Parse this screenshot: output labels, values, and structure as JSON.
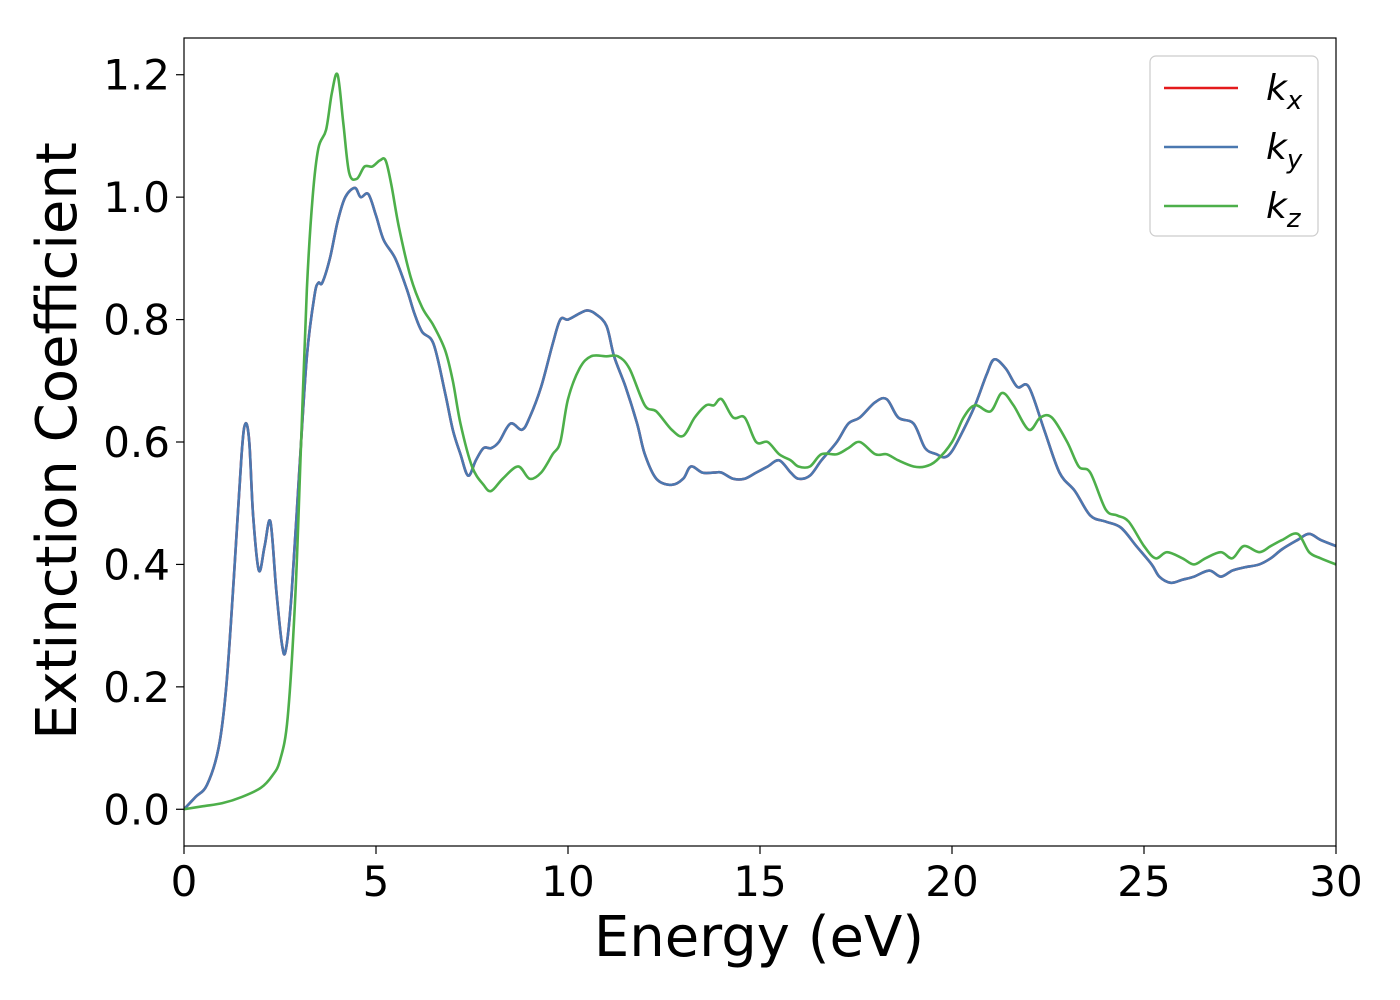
{
  "chart_data": {
    "type": "line",
    "title": "",
    "xlabel": "Energy (eV)",
    "ylabel": "Extinction Coefficient",
    "xlim": [
      0,
      30
    ],
    "ylim": [
      -0.06,
      1.26
    ],
    "xticks": [
      0,
      5,
      10,
      15,
      20,
      25,
      30
    ],
    "yticks": [
      0.0,
      0.2,
      0.4,
      0.6,
      0.8,
      1.0,
      1.2
    ],
    "grid": false,
    "legend_position": "top-right",
    "series": [
      {
        "name": "k",
        "subscript": "x",
        "color": "#e41a1c",
        "x": [
          0,
          0.3,
          0.6,
          0.9,
          1.1,
          1.3,
          1.5,
          1.6,
          1.7,
          1.8,
          1.95,
          2.1,
          2.25,
          2.4,
          2.55,
          2.65,
          2.8,
          3.0,
          3.2,
          3.4,
          3.5,
          3.6,
          3.8,
          4.0,
          4.2,
          4.45,
          4.6,
          4.8,
          5.0,
          5.2,
          5.5,
          5.8,
          6.0,
          6.2,
          6.5,
          6.8,
          7.0,
          7.2,
          7.4,
          7.6,
          7.8,
          8.0,
          8.2,
          8.5,
          8.8,
          9.0,
          9.3,
          9.6,
          9.8,
          10.0,
          10.3,
          10.5,
          10.7,
          11.0,
          11.2,
          11.5,
          11.8,
          12.0,
          12.3,
          12.7,
          13.0,
          13.2,
          13.5,
          13.8,
          14.0,
          14.3,
          14.6,
          14.9,
          15.2,
          15.5,
          15.8,
          16.0,
          16.3,
          16.6,
          17.0,
          17.3,
          17.6,
          18.0,
          18.3,
          18.6,
          19.0,
          19.3,
          19.6,
          19.8,
          20.0,
          20.3,
          20.6,
          20.9,
          21.1,
          21.4,
          21.7,
          22.0,
          22.4,
          22.8,
          23.2,
          23.6,
          24.0,
          24.4,
          24.8,
          25.2,
          25.4,
          25.7,
          26.0,
          26.3,
          26.7,
          27.0,
          27.3,
          27.6,
          28.0,
          28.3,
          28.6,
          29.0,
          29.3,
          29.6,
          30.0
        ],
        "y": [
          0.0,
          0.02,
          0.04,
          0.1,
          0.2,
          0.38,
          0.58,
          0.63,
          0.6,
          0.48,
          0.39,
          0.43,
          0.47,
          0.36,
          0.27,
          0.26,
          0.35,
          0.55,
          0.74,
          0.84,
          0.86,
          0.86,
          0.9,
          0.96,
          1.0,
          1.015,
          1.0,
          1.005,
          0.97,
          0.93,
          0.9,
          0.85,
          0.81,
          0.78,
          0.76,
          0.68,
          0.62,
          0.58,
          0.545,
          0.57,
          0.59,
          0.59,
          0.6,
          0.63,
          0.62,
          0.64,
          0.69,
          0.76,
          0.8,
          0.8,
          0.81,
          0.815,
          0.81,
          0.79,
          0.74,
          0.69,
          0.63,
          0.58,
          0.54,
          0.53,
          0.54,
          0.56,
          0.55,
          0.55,
          0.55,
          0.54,
          0.54,
          0.55,
          0.56,
          0.57,
          0.55,
          0.54,
          0.545,
          0.57,
          0.6,
          0.63,
          0.64,
          0.665,
          0.67,
          0.64,
          0.63,
          0.59,
          0.58,
          0.575,
          0.585,
          0.62,
          0.66,
          0.71,
          0.735,
          0.72,
          0.69,
          0.69,
          0.62,
          0.55,
          0.52,
          0.48,
          0.47,
          0.46,
          0.43,
          0.4,
          0.38,
          0.37,
          0.375,
          0.38,
          0.39,
          0.38,
          0.39,
          0.395,
          0.4,
          0.41,
          0.425,
          0.44,
          0.45,
          0.44,
          0.43
        ]
      },
      {
        "name": "k",
        "subscript": "y",
        "color": "#4a78b0",
        "x": [
          0,
          0.3,
          0.6,
          0.9,
          1.1,
          1.3,
          1.5,
          1.6,
          1.7,
          1.8,
          1.95,
          2.1,
          2.25,
          2.4,
          2.55,
          2.65,
          2.8,
          3.0,
          3.2,
          3.4,
          3.5,
          3.6,
          3.8,
          4.0,
          4.2,
          4.45,
          4.6,
          4.8,
          5.0,
          5.2,
          5.5,
          5.8,
          6.0,
          6.2,
          6.5,
          6.8,
          7.0,
          7.2,
          7.4,
          7.6,
          7.8,
          8.0,
          8.2,
          8.5,
          8.8,
          9.0,
          9.3,
          9.6,
          9.8,
          10.0,
          10.3,
          10.5,
          10.7,
          11.0,
          11.2,
          11.5,
          11.8,
          12.0,
          12.3,
          12.7,
          13.0,
          13.2,
          13.5,
          13.8,
          14.0,
          14.3,
          14.6,
          14.9,
          15.2,
          15.5,
          15.8,
          16.0,
          16.3,
          16.6,
          17.0,
          17.3,
          17.6,
          18.0,
          18.3,
          18.6,
          19.0,
          19.3,
          19.6,
          19.8,
          20.0,
          20.3,
          20.6,
          20.9,
          21.1,
          21.4,
          21.7,
          22.0,
          22.4,
          22.8,
          23.2,
          23.6,
          24.0,
          24.4,
          24.8,
          25.2,
          25.4,
          25.7,
          26.0,
          26.3,
          26.7,
          27.0,
          27.3,
          27.6,
          28.0,
          28.3,
          28.6,
          29.0,
          29.3,
          29.6,
          30.0
        ],
        "y": [
          0.0,
          0.02,
          0.04,
          0.1,
          0.2,
          0.38,
          0.58,
          0.63,
          0.6,
          0.48,
          0.39,
          0.43,
          0.47,
          0.36,
          0.27,
          0.26,
          0.35,
          0.55,
          0.74,
          0.84,
          0.86,
          0.86,
          0.9,
          0.96,
          1.0,
          1.015,
          1.0,
          1.005,
          0.97,
          0.93,
          0.9,
          0.85,
          0.81,
          0.78,
          0.76,
          0.68,
          0.62,
          0.58,
          0.545,
          0.57,
          0.59,
          0.59,
          0.6,
          0.63,
          0.62,
          0.64,
          0.69,
          0.76,
          0.8,
          0.8,
          0.81,
          0.815,
          0.81,
          0.79,
          0.74,
          0.69,
          0.63,
          0.58,
          0.54,
          0.53,
          0.54,
          0.56,
          0.55,
          0.55,
          0.55,
          0.54,
          0.54,
          0.55,
          0.56,
          0.57,
          0.55,
          0.54,
          0.545,
          0.57,
          0.6,
          0.63,
          0.64,
          0.665,
          0.67,
          0.64,
          0.63,
          0.59,
          0.58,
          0.575,
          0.585,
          0.62,
          0.66,
          0.71,
          0.735,
          0.72,
          0.69,
          0.69,
          0.62,
          0.55,
          0.52,
          0.48,
          0.47,
          0.46,
          0.43,
          0.4,
          0.38,
          0.37,
          0.375,
          0.38,
          0.39,
          0.38,
          0.39,
          0.395,
          0.4,
          0.41,
          0.425,
          0.44,
          0.45,
          0.44,
          0.43
        ]
      },
      {
        "name": "k",
        "subscript": "z",
        "color": "#4daf4a",
        "x": [
          0,
          0.5,
          1.0,
          1.5,
          2.0,
          2.3,
          2.5,
          2.7,
          2.9,
          3.05,
          3.2,
          3.35,
          3.5,
          3.7,
          3.85,
          4.0,
          4.15,
          4.3,
          4.5,
          4.7,
          4.9,
          5.1,
          5.25,
          5.4,
          5.6,
          5.9,
          6.2,
          6.5,
          6.8,
          7.0,
          7.2,
          7.5,
          7.8,
          8.0,
          8.3,
          8.7,
          9.0,
          9.3,
          9.6,
          9.8,
          10.0,
          10.3,
          10.6,
          11.0,
          11.3,
          11.6,
          12.0,
          12.3,
          12.7,
          13.0,
          13.3,
          13.6,
          13.8,
          14.0,
          14.3,
          14.6,
          14.9,
          15.2,
          15.5,
          15.8,
          16.0,
          16.3,
          16.6,
          17.0,
          17.3,
          17.6,
          18.0,
          18.3,
          18.6,
          19.0,
          19.3,
          19.6,
          20.0,
          20.3,
          20.6,
          21.0,
          21.3,
          21.6,
          22.0,
          22.3,
          22.6,
          23.0,
          23.3,
          23.6,
          24.0,
          24.3,
          24.6,
          25.0,
          25.3,
          25.6,
          26.0,
          26.3,
          26.6,
          27.0,
          27.3,
          27.6,
          28.0,
          28.3,
          28.6,
          29.0,
          29.3,
          29.6,
          30.0
        ],
        "y": [
          0.0,
          0.005,
          0.01,
          0.02,
          0.035,
          0.055,
          0.08,
          0.15,
          0.35,
          0.6,
          0.85,
          1.0,
          1.08,
          1.11,
          1.17,
          1.2,
          1.12,
          1.04,
          1.03,
          1.05,
          1.05,
          1.06,
          1.06,
          1.02,
          0.95,
          0.87,
          0.82,
          0.79,
          0.75,
          0.7,
          0.63,
          0.56,
          0.53,
          0.52,
          0.54,
          0.56,
          0.54,
          0.55,
          0.58,
          0.6,
          0.67,
          0.72,
          0.74,
          0.74,
          0.74,
          0.72,
          0.66,
          0.65,
          0.62,
          0.61,
          0.64,
          0.66,
          0.66,
          0.67,
          0.64,
          0.64,
          0.6,
          0.6,
          0.58,
          0.57,
          0.56,
          0.56,
          0.58,
          0.58,
          0.59,
          0.6,
          0.58,
          0.58,
          0.57,
          0.56,
          0.56,
          0.57,
          0.6,
          0.64,
          0.66,
          0.65,
          0.68,
          0.66,
          0.62,
          0.64,
          0.64,
          0.6,
          0.56,
          0.55,
          0.49,
          0.48,
          0.47,
          0.43,
          0.41,
          0.42,
          0.41,
          0.4,
          0.41,
          0.42,
          0.41,
          0.43,
          0.42,
          0.43,
          0.44,
          0.45,
          0.42,
          0.41,
          0.4
        ]
      }
    ]
  }
}
